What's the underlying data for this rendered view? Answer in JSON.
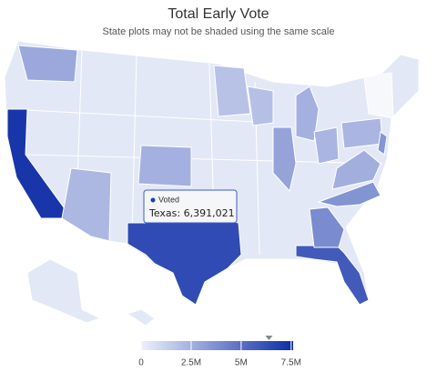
{
  "title": "Total Early Vote",
  "subtitle": "State plots may not be shaded using the same scale",
  "color_axis": {
    "lim": [
      0,
      7600000
    ],
    "ticks": [
      0,
      {
        "value": 2500000,
        "label": "2.5M"
      },
      {
        "value": 5000000,
        "label": "5M"
      },
      {
        "value": 7500000,
        "label": "7.5M"
      }
    ],
    "colors": [
      "#eef1fb",
      "#0c2ca6"
    ]
  },
  "values": [
    7200000,
    6391021,
    5800000,
    3900000,
    3600000,
    2200000,
    2500000,
    2800000,
    2500000,
    3000000,
    2300000,
    2600000,
    3500000,
    2300000,
    1800000,
    1900000
  ],
  "tooltip": {
    "series": "Voted",
    "label": "Texas: 6,391,021"
  }
}
